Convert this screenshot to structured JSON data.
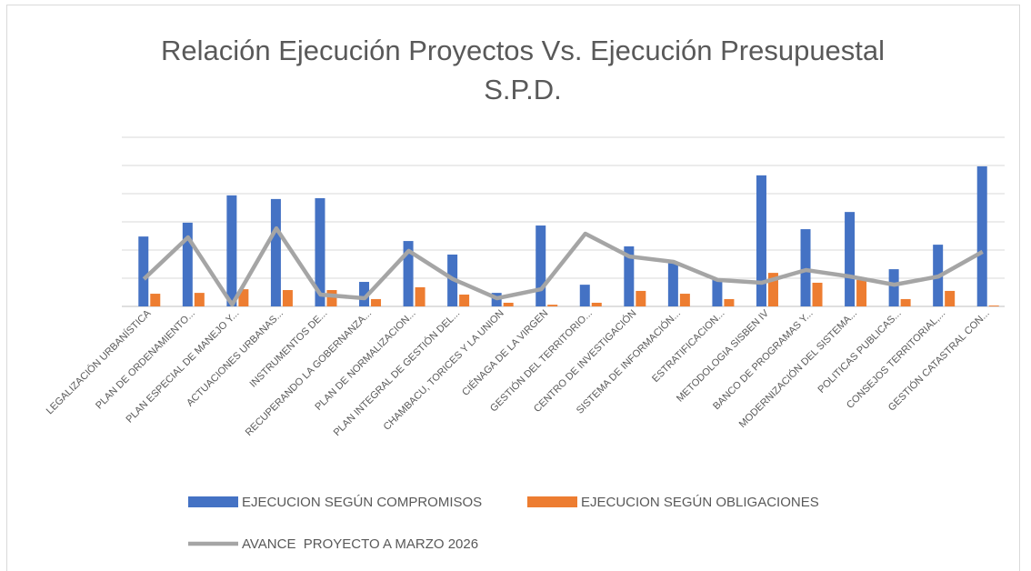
{
  "chart_data": {
    "type": "bar_line",
    "title": "Relación Ejecución Proyectos Vs. Ejecución Presupuestal S.P.D.",
    "categories": [
      "LEGALIZACIÓN URBANÍSTICA",
      "PLAN DE ORDENAMIENTO...",
      "PLAN ESPECIAL DE MANEJO Y...",
      "ACTUACIONES URBANAS...",
      "INSTRUMENTOS DE...",
      "RECUPERANDO LA GOBERNANZA...",
      "PLAN DE NORMALIZACION...",
      "PLAN INTEGRAL DE GESTIÓN DEL...",
      "CHAMBACU, TORICES Y LA UNION",
      "CIÉNAGA DE LA VIRGEN",
      "GESTIÓN DEL TERRITORIO...",
      "CENTRO DE INVESTIGACIÓN",
      "SISTEMA DE INFORMACIÓN...",
      "ESTRATIFICACION...",
      "METODOLOGIA SISBEN IV",
      "BANCO DE PROGRAMAS Y...",
      "MODERNIZACIÓN DEL SISTEMA...",
      "POLITICAS PUBLICAS...",
      "CONSEJOS TERRITORIAL,...",
      "GESTIÓN CATASTRAL CON..."
    ],
    "series": [
      {
        "name": "EJECUCION SEGÚN COMPROMISOS",
        "kind": "bar",
        "color": "#4472c4",
        "values": [
          24.8,
          29.7,
          39.4,
          38.1,
          38.4,
          8.7,
          23.2,
          18.4,
          4.8,
          28.7,
          7.7,
          21.3,
          15.8,
          10,
          46.5,
          27.4,
          33.5,
          13.2,
          21.9,
          49.7
        ]
      },
      {
        "name": "EJECUCION SEGÚN OBLIGACIONES",
        "kind": "bar",
        "color": "#ed7d31",
        "values": [
          4.5,
          4.8,
          6.1,
          5.8,
          5.8,
          2.6,
          6.8,
          4.2,
          1.3,
          0.6,
          1.3,
          5.5,
          4.5,
          2.6,
          11.9,
          8.4,
          9.4,
          2.6,
          5.5,
          0.3
        ]
      },
      {
        "name": "AVANCE  PROYECTO A MARZO 2026",
        "kind": "line",
        "color": "#a5a5a5",
        "values": [
          9.7,
          24.5,
          0.6,
          27.7,
          4.2,
          2.9,
          19.7,
          9.7,
          2.9,
          6.1,
          25.8,
          17.7,
          15.8,
          9.4,
          8.4,
          12.9,
          10.6,
          7.7,
          10.6,
          19.4
        ]
      }
    ],
    "ylim": [
      0,
      60
    ],
    "yticks": [
      0,
      10,
      20,
      30,
      40,
      50,
      60
    ],
    "grid": true
  }
}
